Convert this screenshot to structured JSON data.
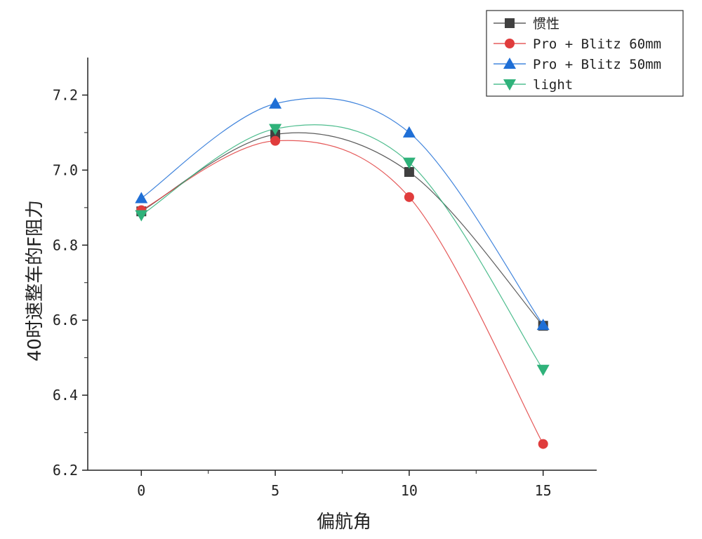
{
  "chart_data": {
    "type": "line",
    "title": "",
    "xlabel": "偏航角",
    "ylabel": "40时速整车的F阻力",
    "x": [
      0,
      5,
      10,
      15
    ],
    "xlim": [
      -2,
      17
    ],
    "ylim": [
      6.2,
      7.3
    ],
    "xticks": [
      0,
      5,
      10,
      15
    ],
    "xtick_labels": [
      "0",
      "5",
      "10",
      "15"
    ],
    "yticks": [
      6.2,
      6.4,
      6.6,
      6.8,
      7.0,
      7.2
    ],
    "ytick_labels": [
      "6.2",
      "6.4",
      "6.6",
      "6.8",
      "7.0",
      "7.2"
    ],
    "grid": false,
    "legend_position": "top-right",
    "series": [
      {
        "name": "惯性",
        "values": [
          6.89,
          7.095,
          6.995,
          6.585
        ],
        "color": "#404040",
        "marker": "square"
      },
      {
        "name": "Pro + Blitz 60mm",
        "values": [
          6.893,
          7.078,
          6.928,
          6.27
        ],
        "color": "#e03c3c",
        "marker": "circle"
      },
      {
        "name": "Pro + Blitz 50mm",
        "values": [
          6.925,
          7.177,
          7.1,
          6.587
        ],
        "color": "#1f6fd6",
        "marker": "triangle-up"
      },
      {
        "name": "light",
        "values": [
          6.88,
          7.11,
          7.02,
          6.468
        ],
        "color": "#2fb27a",
        "marker": "triangle-down"
      }
    ]
  }
}
